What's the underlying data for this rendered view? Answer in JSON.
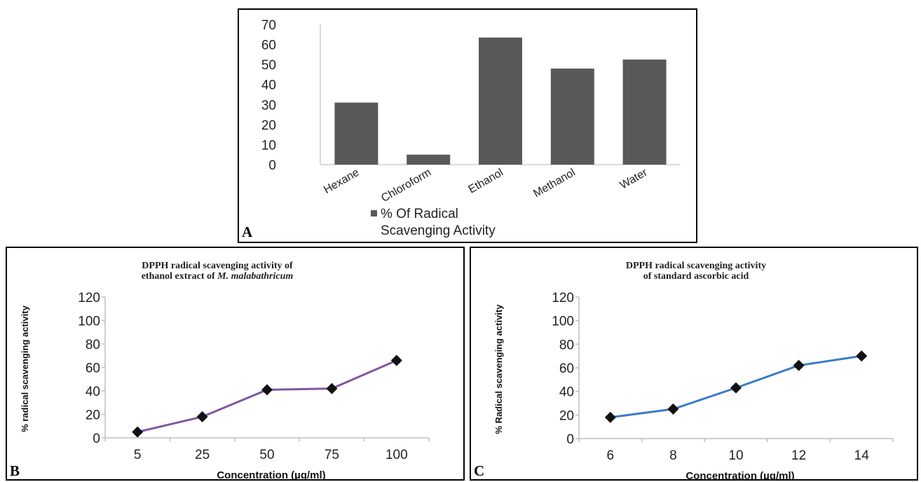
{
  "panels": [
    {
      "letter": "A"
    },
    {
      "letter": "B"
    },
    {
      "letter": "C"
    }
  ],
  "chart_data": [
    {
      "type": "bar",
      "panel": "A",
      "categories": [
        "Hexane",
        "Chloroform",
        "Ethanol",
        "Methanol",
        "Water"
      ],
      "series": [
        {
          "name": "% Of Radical Scavenging Activity",
          "values": [
            31,
            5,
            63.5,
            48,
            52.5
          ]
        }
      ],
      "legend_lines": [
        "% Of Radical",
        "Scavenging Activity"
      ],
      "yticks": [
        "0",
        "10",
        "20",
        "30",
        "40",
        "50",
        "60",
        "70"
      ],
      "ylim": [
        0,
        70
      ],
      "legend_position": "bottom",
      "color": "#595959"
    },
    {
      "type": "line",
      "panel": "B",
      "title_lines": [
        "DPPH radical scavenging activity of",
        "ethanol extract of "
      ],
      "title_italic": "M. malabathricum",
      "x": [
        "5",
        "25",
        "50",
        "75",
        "100"
      ],
      "values": [
        5,
        18,
        41,
        42,
        66
      ],
      "xlabel": "Concentration (µg/ml)",
      "ylabel": "% radical scavenging activity",
      "yticks": [
        "0",
        "20",
        "40",
        "60",
        "80",
        "100",
        "120"
      ],
      "ylim": [
        0,
        120
      ],
      "color": "#7f56a0"
    },
    {
      "type": "line",
      "panel": "C",
      "title_lines": [
        "DPPH radical scavenging activity",
        "of standard ascorbic acid"
      ],
      "x": [
        "6",
        "8",
        "10",
        "12",
        "14"
      ],
      "values": [
        18,
        25,
        43,
        62,
        70
      ],
      "xlabel": "Concentration (µg/ml)",
      "ylabel": "% Radical scavenging activity",
      "yticks": [
        "0",
        "20",
        "40",
        "60",
        "80",
        "100",
        "120"
      ],
      "ylim": [
        0,
        120
      ],
      "color": "#3d7cc4"
    }
  ]
}
